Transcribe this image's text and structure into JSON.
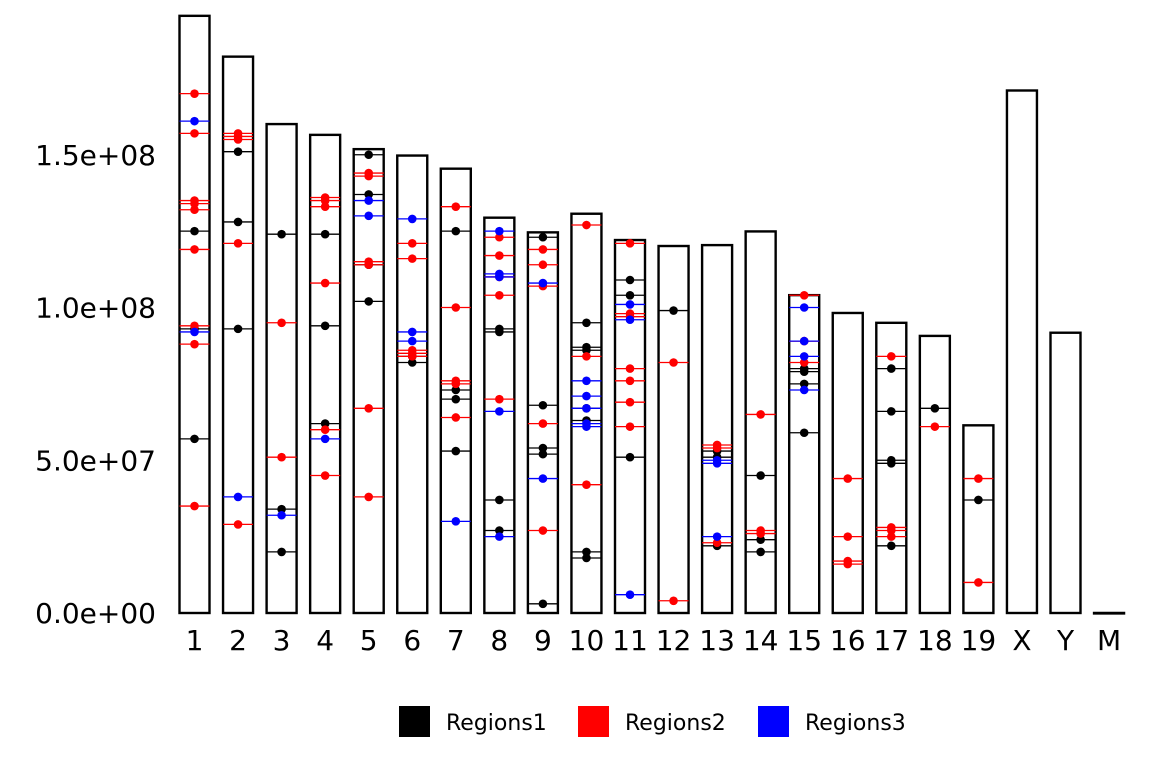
{
  "chart_data": {
    "type": "karyogram",
    "ylim": [
      0,
      200000000
    ],
    "y_ticks": [
      {
        "value": 0,
        "label": "0.0e+00"
      },
      {
        "value": 50000000,
        "label": "5.0e+07"
      },
      {
        "value": 100000000,
        "label": "1.0e+08"
      },
      {
        "value": 150000000,
        "label": "1.5e+08"
      }
    ],
    "chromosomes": [
      {
        "name": "1",
        "length": 195471971
      },
      {
        "name": "2",
        "length": 182113224
      },
      {
        "name": "3",
        "length": 160039680
      },
      {
        "name": "4",
        "length": 156508116
      },
      {
        "name": "5",
        "length": 151834684
      },
      {
        "name": "6",
        "length": 149736546
      },
      {
        "name": "7",
        "length": 145441459
      },
      {
        "name": "8",
        "length": 129401213
      },
      {
        "name": "9",
        "length": 124595110
      },
      {
        "name": "10",
        "length": 130694993
      },
      {
        "name": "11",
        "length": 122082543
      },
      {
        "name": "12",
        "length": 120129022
      },
      {
        "name": "13",
        "length": 120421639
      },
      {
        "name": "14",
        "length": 124902244
      },
      {
        "name": "15",
        "length": 104043685
      },
      {
        "name": "16",
        "length": 98207768
      },
      {
        "name": "17",
        "length": 94987271
      },
      {
        "name": "18",
        "length": 90702639
      },
      {
        "name": "19",
        "length": 61431566
      },
      {
        "name": "X",
        "length": 171031299
      },
      {
        "name": "Y",
        "length": 91744698
      },
      {
        "name": "M",
        "length": 16299
      }
    ],
    "series": [
      {
        "name": "Regions1",
        "color": "#000000",
        "points": [
          [
            "1",
            125000000
          ],
          [
            "1",
            93000000
          ],
          [
            "1",
            57000000
          ],
          [
            "2",
            151000000
          ],
          [
            "2",
            128000000
          ],
          [
            "2",
            93000000
          ],
          [
            "3",
            124000000
          ],
          [
            "3",
            34000000
          ],
          [
            "3",
            20000000
          ],
          [
            "4",
            124000000
          ],
          [
            "4",
            94000000
          ],
          [
            "4",
            62000000
          ],
          [
            "5",
            150000000
          ],
          [
            "5",
            137000000
          ],
          [
            "5",
            114000000
          ],
          [
            "5",
            102000000
          ],
          [
            "6",
            82000000
          ],
          [
            "6",
            84000000
          ],
          [
            "7",
            125000000
          ],
          [
            "7",
            73000000
          ],
          [
            "7",
            70000000
          ],
          [
            "7",
            53000000
          ],
          [
            "8",
            93000000
          ],
          [
            "8",
            92000000
          ],
          [
            "8",
            37000000
          ],
          [
            "8",
            27000000
          ],
          [
            "9",
            123000000
          ],
          [
            "9",
            68000000
          ],
          [
            "9",
            54000000
          ],
          [
            "9",
            52000000
          ],
          [
            "9",
            3000000
          ],
          [
            "10",
            95000000
          ],
          [
            "10",
            87000000
          ],
          [
            "10",
            86000000
          ],
          [
            "10",
            67000000
          ],
          [
            "10",
            63000000
          ],
          [
            "10",
            20000000
          ],
          [
            "10",
            18000000
          ],
          [
            "11",
            109000000
          ],
          [
            "11",
            104000000
          ],
          [
            "11",
            51000000
          ],
          [
            "12",
            99000000
          ],
          [
            "13",
            53000000
          ],
          [
            "13",
            51000000
          ],
          [
            "13",
            22000000
          ],
          [
            "14",
            45000000
          ],
          [
            "14",
            24000000
          ],
          [
            "14",
            20000000
          ],
          [
            "15",
            80000000
          ],
          [
            "15",
            79000000
          ],
          [
            "15",
            75000000
          ],
          [
            "15",
            59000000
          ],
          [
            "17",
            80000000
          ],
          [
            "17",
            66000000
          ],
          [
            "17",
            50000000
          ],
          [
            "17",
            49000000
          ],
          [
            "17",
            22000000
          ],
          [
            "18",
            67000000
          ],
          [
            "19",
            37000000
          ]
        ]
      },
      {
        "name": "Regions2",
        "color": "#ff0000",
        "points": [
          [
            "1",
            170000000
          ],
          [
            "1",
            157000000
          ],
          [
            "1",
            135000000
          ],
          [
            "1",
            134000000
          ],
          [
            "1",
            132000000
          ],
          [
            "1",
            119000000
          ],
          [
            "1",
            94000000
          ],
          [
            "1",
            88000000
          ],
          [
            "1",
            35000000
          ],
          [
            "2",
            157000000
          ],
          [
            "2",
            156000000
          ],
          [
            "2",
            155000000
          ],
          [
            "2",
            121000000
          ],
          [
            "2",
            29000000
          ],
          [
            "3",
            95000000
          ],
          [
            "3",
            51000000
          ],
          [
            "4",
            136000000
          ],
          [
            "4",
            135000000
          ],
          [
            "4",
            133000000
          ],
          [
            "4",
            108000000
          ],
          [
            "4",
            60000000
          ],
          [
            "4",
            45000000
          ],
          [
            "5",
            144000000
          ],
          [
            "5",
            143000000
          ],
          [
            "5",
            115000000
          ],
          [
            "5",
            114000000
          ],
          [
            "5",
            67000000
          ],
          [
            "5",
            38000000
          ],
          [
            "6",
            121000000
          ],
          [
            "6",
            116000000
          ],
          [
            "6",
            86000000
          ],
          [
            "6",
            85000000
          ],
          [
            "6",
            84000000
          ],
          [
            "7",
            133000000
          ],
          [
            "7",
            100000000
          ],
          [
            "7",
            76000000
          ],
          [
            "7",
            75000000
          ],
          [
            "7",
            64000000
          ],
          [
            "8",
            123000000
          ],
          [
            "8",
            117000000
          ],
          [
            "8",
            110000000
          ],
          [
            "8",
            104000000
          ],
          [
            "8",
            70000000
          ],
          [
            "9",
            119000000
          ],
          [
            "9",
            114000000
          ],
          [
            "9",
            107000000
          ],
          [
            "9",
            62000000
          ],
          [
            "9",
            27000000
          ],
          [
            "10",
            127000000
          ],
          [
            "10",
            84000000
          ],
          [
            "10",
            42000000
          ],
          [
            "11",
            121000000
          ],
          [
            "11",
            98000000
          ],
          [
            "11",
            97000000
          ],
          [
            "11",
            80000000
          ],
          [
            "11",
            76000000
          ],
          [
            "11",
            69000000
          ],
          [
            "11",
            61000000
          ],
          [
            "12",
            82000000
          ],
          [
            "12",
            4000000
          ],
          [
            "13",
            55000000
          ],
          [
            "13",
            54000000
          ],
          [
            "13",
            23000000
          ],
          [
            "14",
            65000000
          ],
          [
            "14",
            27000000
          ],
          [
            "14",
            26000000
          ],
          [
            "15",
            104000000
          ],
          [
            "15",
            89000000
          ],
          [
            "15",
            82000000
          ],
          [
            "16",
            44000000
          ],
          [
            "16",
            25000000
          ],
          [
            "16",
            17000000
          ],
          [
            "16",
            16000000
          ],
          [
            "17",
            84000000
          ],
          [
            "17",
            28000000
          ],
          [
            "17",
            27000000
          ],
          [
            "17",
            25000000
          ],
          [
            "18",
            61000000
          ],
          [
            "19",
            44000000
          ],
          [
            "19",
            10000000
          ]
        ]
      },
      {
        "name": "Regions3",
        "color": "#0000ff",
        "points": [
          [
            "1",
            161000000
          ],
          [
            "1",
            92000000
          ],
          [
            "2",
            38000000
          ],
          [
            "3",
            32000000
          ],
          [
            "4",
            57000000
          ],
          [
            "5",
            135000000
          ],
          [
            "5",
            130000000
          ],
          [
            "6",
            129000000
          ],
          [
            "6",
            92000000
          ],
          [
            "6",
            89000000
          ],
          [
            "7",
            30000000
          ],
          [
            "8",
            125000000
          ],
          [
            "8",
            111000000
          ],
          [
            "8",
            110000000
          ],
          [
            "8",
            66000000
          ],
          [
            "8",
            25000000
          ],
          [
            "9",
            108000000
          ],
          [
            "9",
            44000000
          ],
          [
            "10",
            76000000
          ],
          [
            "10",
            71000000
          ],
          [
            "10",
            67000000
          ],
          [
            "10",
            62000000
          ],
          [
            "10",
            61000000
          ],
          [
            "11",
            101000000
          ],
          [
            "11",
            96000000
          ],
          [
            "11",
            6000000
          ],
          [
            "13",
            50000000
          ],
          [
            "13",
            49000000
          ],
          [
            "13",
            25000000
          ],
          [
            "15",
            100000000
          ],
          [
            "15",
            89000000
          ],
          [
            "15",
            84000000
          ],
          [
            "15",
            73000000
          ]
        ]
      }
    ],
    "legend": {
      "position": "bottom",
      "entries": [
        {
          "label": "Regions1",
          "color": "#000000"
        },
        {
          "label": "Regions2",
          "color": "#ff0000"
        },
        {
          "label": "Regions3",
          "color": "#0000ff"
        }
      ]
    },
    "grid": false
  }
}
